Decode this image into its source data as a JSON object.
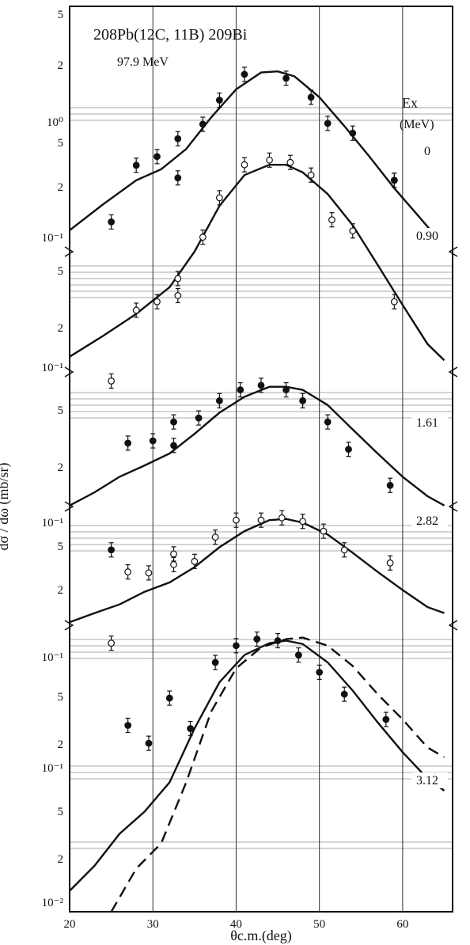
{
  "chart_data": {
    "type": "scatter",
    "title_line": "208Pb(12C, 11B) 209Bi",
    "energy": "97.9 MeV",
    "xlabel": "θc.m.(deg)",
    "ylabel": "dσ / dω (mb/sr)",
    "xlim": [
      20,
      66
    ],
    "x_ticks": [
      "20",
      "30",
      "40",
      "50",
      "60"
    ],
    "ex_label": "Ex",
    "ex_unit": "(MeV)",
    "colors": {
      "ink": "#111111",
      "grid": "#555555"
    },
    "panels": [
      {
        "state": "0",
        "decades": [
          0.1,
          1
        ],
        "tick_labels": [
          "5",
          "2",
          "10⁰",
          "5",
          "2",
          "10⁻¹"
        ],
        "points": [
          {
            "x": 25,
            "y": 0.11,
            "filled": true
          },
          {
            "x": 28,
            "y": 0.3,
            "filled": true
          },
          {
            "x": 30.5,
            "y": 0.35,
            "filled": true
          },
          {
            "x": 33,
            "y": 0.48,
            "filled": true
          },
          {
            "x": 33,
            "y": 0.24,
            "filled": true
          },
          {
            "x": 36,
            "y": 0.62,
            "filled": true
          },
          {
            "x": 38,
            "y": 0.95,
            "filled": true
          },
          {
            "x": 41,
            "y": 1.5,
            "filled": true
          },
          {
            "x": 46,
            "y": 1.4,
            "filled": true
          },
          {
            "x": 49,
            "y": 1.0,
            "filled": true
          },
          {
            "x": 51,
            "y": 0.63,
            "filled": true
          },
          {
            "x": 54,
            "y": 0.53,
            "filled": true
          },
          {
            "x": 59,
            "y": 0.23,
            "filled": true
          },
          {
            "x": 59,
            "y": 0.23,
            "filled": true
          }
        ],
        "curve": [
          [
            20,
            0.095
          ],
          [
            24,
            0.15
          ],
          [
            28,
            0.23
          ],
          [
            31,
            0.28
          ],
          [
            34,
            0.4
          ],
          [
            37,
            0.7
          ],
          [
            40,
            1.15
          ],
          [
            43,
            1.55
          ],
          [
            45,
            1.58
          ],
          [
            47,
            1.45
          ],
          [
            50,
            1.0
          ],
          [
            53,
            0.6
          ],
          [
            56,
            0.35
          ],
          [
            59,
            0.2
          ],
          [
            62,
            0.12
          ],
          [
            64,
            0.085
          ]
        ]
      },
      {
        "state": "0.90",
        "decades": [
          0.01,
          0.1
        ],
        "tick_labels": [
          "5",
          "2",
          "10⁻¹",
          "5",
          "2"
        ],
        "points": [
          {
            "x": 33,
            "y": 0.062,
            "filled": false
          },
          {
            "x": 33,
            "y": 0.049,
            "filled": false
          },
          {
            "x": 30.5,
            "y": 0.045,
            "filled": false
          },
          {
            "x": 28,
            "y": 0.04,
            "filled": false
          },
          {
            "x": 36,
            "y": 0.11,
            "filled": false
          },
          {
            "x": 38,
            "y": 0.19,
            "filled": false
          },
          {
            "x": 41,
            "y": 0.3,
            "filled": false
          },
          {
            "x": 44,
            "y": 0.32,
            "filled": false
          },
          {
            "x": 46.5,
            "y": 0.31,
            "filled": false
          },
          {
            "x": 49,
            "y": 0.26,
            "filled": false
          },
          {
            "x": 51.5,
            "y": 0.14,
            "filled": false
          },
          {
            "x": 54,
            "y": 0.12,
            "filled": false
          },
          {
            "x": 59,
            "y": 0.045,
            "filled": false
          },
          {
            "x": 25,
            "y": 0.015,
            "filled": false
          }
        ],
        "curve": [
          [
            20,
            0.021
          ],
          [
            24,
            0.028
          ],
          [
            28,
            0.038
          ],
          [
            32,
            0.055
          ],
          [
            35,
            0.09
          ],
          [
            38,
            0.17
          ],
          [
            41,
            0.26
          ],
          [
            44,
            0.3
          ],
          [
            46,
            0.3
          ],
          [
            48,
            0.27
          ],
          [
            51,
            0.2
          ],
          [
            54,
            0.13
          ],
          [
            57,
            0.075
          ],
          [
            60,
            0.043
          ],
          [
            63,
            0.025
          ],
          [
            65,
            0.02
          ]
        ]
      },
      {
        "state": "1.61",
        "decades": [
          0.01,
          0.1
        ],
        "tick_labels": [
          "10⁻¹",
          "5",
          "2"
        ],
        "points": [
          {
            "x": 38,
            "y": 0.1,
            "filled": true
          },
          {
            "x": 40.5,
            "y": 0.13,
            "filled": true
          },
          {
            "x": 43,
            "y": 0.145,
            "filled": true
          },
          {
            "x": 46,
            "y": 0.13,
            "filled": true
          },
          {
            "x": 48,
            "y": 0.1,
            "filled": true
          },
          {
            "x": 35.5,
            "y": 0.066,
            "filled": true
          },
          {
            "x": 32.5,
            "y": 0.06,
            "filled": true
          },
          {
            "x": 30,
            "y": 0.038,
            "filled": true
          },
          {
            "x": 27,
            "y": 0.036,
            "filled": true
          },
          {
            "x": 32.5,
            "y": 0.034,
            "filled": true
          },
          {
            "x": 51,
            "y": 0.06,
            "filled": true
          },
          {
            "x": 53.5,
            "y": 0.031,
            "filled": true
          },
          {
            "x": 58.5,
            "y": 0.013,
            "filled": true
          }
        ],
        "curve": [
          [
            20,
            0.008
          ],
          [
            23,
            0.011
          ],
          [
            26,
            0.016
          ],
          [
            29,
            0.021
          ],
          [
            32,
            0.028
          ],
          [
            35,
            0.045
          ],
          [
            38,
            0.075
          ],
          [
            41,
            0.11
          ],
          [
            44,
            0.14
          ],
          [
            46,
            0.14
          ],
          [
            48,
            0.13
          ],
          [
            51,
            0.09
          ],
          [
            54,
            0.05
          ],
          [
            57,
            0.028
          ],
          [
            60,
            0.016
          ],
          [
            63,
            0.01
          ],
          [
            65,
            0.008
          ]
        ]
      },
      {
        "state": "2.82",
        "decades": [
          0.01,
          0.1
        ],
        "tick_labels": [
          "10⁻¹",
          "5",
          "2"
        ],
        "points": [
          {
            "x": 40,
            "y": 0.15,
            "filled": false
          },
          {
            "x": 43,
            "y": 0.15,
            "filled": false
          },
          {
            "x": 45.5,
            "y": 0.16,
            "filled": false
          },
          {
            "x": 48,
            "y": 0.145,
            "filled": false
          },
          {
            "x": 50.5,
            "y": 0.11,
            "filled": false
          },
          {
            "x": 37.5,
            "y": 0.093,
            "filled": false
          },
          {
            "x": 32.5,
            "y": 0.058,
            "filled": false
          },
          {
            "x": 32.5,
            "y": 0.043,
            "filled": false
          },
          {
            "x": 35,
            "y": 0.047,
            "filled": false
          },
          {
            "x": 27,
            "y": 0.035,
            "filled": false
          },
          {
            "x": 29.5,
            "y": 0.034,
            "filled": false
          },
          {
            "x": 53,
            "y": 0.065,
            "filled": false
          },
          {
            "x": 58.5,
            "y": 0.045,
            "filled": false
          },
          {
            "x": 25,
            "y": 0.065,
            "filled": true
          }
        ],
        "curve": [
          [
            20,
            0.0085
          ],
          [
            23,
            0.011
          ],
          [
            26,
            0.014
          ],
          [
            29,
            0.02
          ],
          [
            32,
            0.026
          ],
          [
            35,
            0.04
          ],
          [
            38,
            0.07
          ],
          [
            41,
            0.11
          ],
          [
            44,
            0.15
          ],
          [
            46,
            0.155
          ],
          [
            48,
            0.14
          ],
          [
            51,
            0.1
          ],
          [
            54,
            0.06
          ],
          [
            57,
            0.035
          ],
          [
            60,
            0.021
          ],
          [
            63,
            0.013
          ],
          [
            65,
            0.011
          ]
        ]
      },
      {
        "state": "3.12",
        "decades": [
          0.01,
          0.1
        ],
        "tick_labels": [
          "10⁻¹",
          "5",
          "2",
          "10⁻¹",
          "5",
          "2",
          "10⁻²"
        ],
        "points": [
          {
            "x": 40,
            "y": 0.72,
            "filled": true
          },
          {
            "x": 42.5,
            "y": 0.8,
            "filled": true
          },
          {
            "x": 45,
            "y": 0.78,
            "filled": true
          },
          {
            "x": 47.5,
            "y": 0.62,
            "filled": true
          },
          {
            "x": 50,
            "y": 0.47,
            "filled": true
          },
          {
            "x": 37.5,
            "y": 0.55,
            "filled": true
          },
          {
            "x": 32,
            "y": 0.31,
            "filled": true
          },
          {
            "x": 34.5,
            "y": 0.19,
            "filled": true
          },
          {
            "x": 27,
            "y": 0.2,
            "filled": true
          },
          {
            "x": 29.5,
            "y": 0.15,
            "filled": true
          },
          {
            "x": 53,
            "y": 0.33,
            "filled": true
          },
          {
            "x": 58,
            "y": 0.22,
            "filled": true
          },
          {
            "x": 25,
            "y": 0.75,
            "filled": false
          }
        ],
        "curve": [
          [
            20,
            0.014
          ],
          [
            23,
            0.021
          ],
          [
            26,
            0.035
          ],
          [
            29,
            0.05
          ],
          [
            32,
            0.08
          ],
          [
            35,
            0.19
          ],
          [
            38,
            0.4
          ],
          [
            41,
            0.62
          ],
          [
            44,
            0.75
          ],
          [
            46,
            0.78
          ],
          [
            48,
            0.74
          ],
          [
            51,
            0.55
          ],
          [
            54,
            0.35
          ],
          [
            57,
            0.21
          ],
          [
            60,
            0.13
          ],
          [
            63,
            0.085
          ],
          [
            65,
            0.07
          ]
        ],
        "dashed_curve": [
          [
            25,
            0.01
          ],
          [
            28,
            0.02
          ],
          [
            31,
            0.03
          ],
          [
            34,
            0.08
          ],
          [
            37,
            0.25
          ],
          [
            40,
            0.5
          ],
          [
            43,
            0.7
          ],
          [
            46,
            0.8
          ],
          [
            48,
            0.82
          ],
          [
            51,
            0.72
          ],
          [
            54,
            0.52
          ],
          [
            57,
            0.33
          ],
          [
            60,
            0.22
          ],
          [
            63,
            0.14
          ],
          [
            65,
            0.12
          ]
        ]
      }
    ]
  }
}
